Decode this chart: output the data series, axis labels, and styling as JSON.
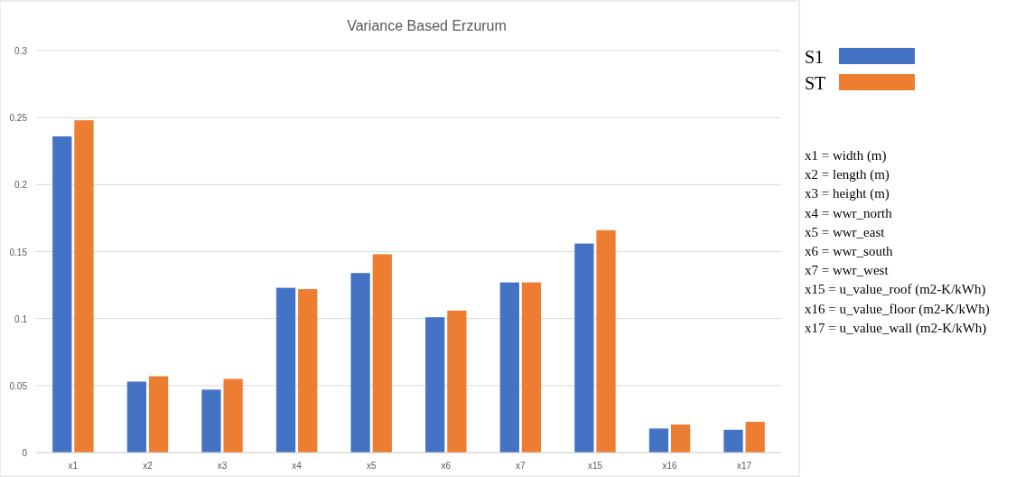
{
  "chart_data": {
    "type": "bar",
    "title": "Variance Based Erzurum",
    "categories": [
      "x1",
      "x2",
      "x3",
      "x4",
      "x5",
      "x6",
      "x7",
      "x15",
      "x16",
      "x17"
    ],
    "series": [
      {
        "name": "S1",
        "color": "#4472c4",
        "values": [
          0.236,
          0.053,
          0.047,
          0.123,
          0.134,
          0.101,
          0.127,
          0.156,
          0.018,
          0.017
        ]
      },
      {
        "name": "ST",
        "color": "#ed7d31",
        "values": [
          0.248,
          0.057,
          0.055,
          0.122,
          0.148,
          0.106,
          0.127,
          0.166,
          0.021,
          0.023
        ]
      }
    ],
    "ylim": [
      0,
      0.3
    ],
    "yticks": [
      0,
      0.05,
      0.1,
      0.15,
      0.2,
      0.25,
      0.3
    ],
    "grid": "y",
    "legend": "top right",
    "annotations": [
      "x1 = width (m)",
      "x2 = length (m)",
      "x3 = height (m)",
      "x4 = wwr_north",
      "x5 = wwr_east",
      "x6 = wwr_south",
      "x7 = wwr_west",
      "x15 = u_value_roof (m2-K/kWh)",
      "x16 = u_value_floor (m2-K/kWh)",
      "x17 = u_value_wall (m2-K/kWh)"
    ]
  }
}
